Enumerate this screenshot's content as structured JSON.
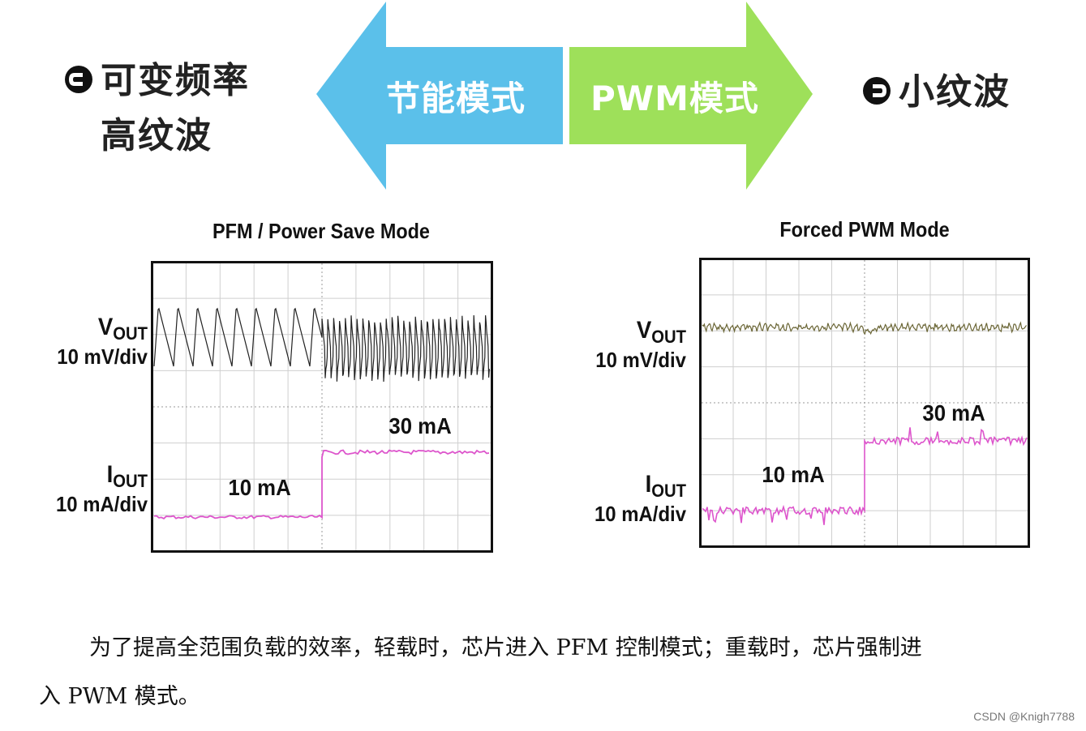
{
  "left_label": {
    "line1": "可变频率",
    "line2": "高纹波"
  },
  "right_label": {
    "text": "小纹波"
  },
  "arrows": {
    "left_text": "节能模式",
    "right_text": "PWM模式",
    "left_color": "#5bc0ea",
    "right_color": "#9ee05a"
  },
  "scope_left": {
    "title": "PFM / Power Save Mode",
    "vout_label": "V",
    "vout_sub": "OUT",
    "vout_scale": "10 mV/div",
    "iout_label": "I",
    "iout_sub": "OUT",
    "iout_scale": "10 mA/div",
    "low_current": "10 mA",
    "high_current": "30 mA"
  },
  "scope_right": {
    "title": "Forced PWM Mode",
    "vout_label": "V",
    "vout_sub": "OUT",
    "vout_scale": "10 mV/div",
    "iout_label": "I",
    "iout_sub": "OUT",
    "iout_scale": "10 mA/div",
    "low_current": "10 mA",
    "high_current": "30 mA"
  },
  "trace_colors": {
    "vout_pfm": "#222222",
    "vout_pwm": "#6b6636",
    "iout": "#dd55cc"
  },
  "caption": {
    "line1": "为了提高全范围负载的效率，轻载时，芯片进入 PFM 控制模式；重载时，芯片强制进",
    "line2": "入 PWM 模式。"
  },
  "credit": "CSDN @Knigh7788"
}
